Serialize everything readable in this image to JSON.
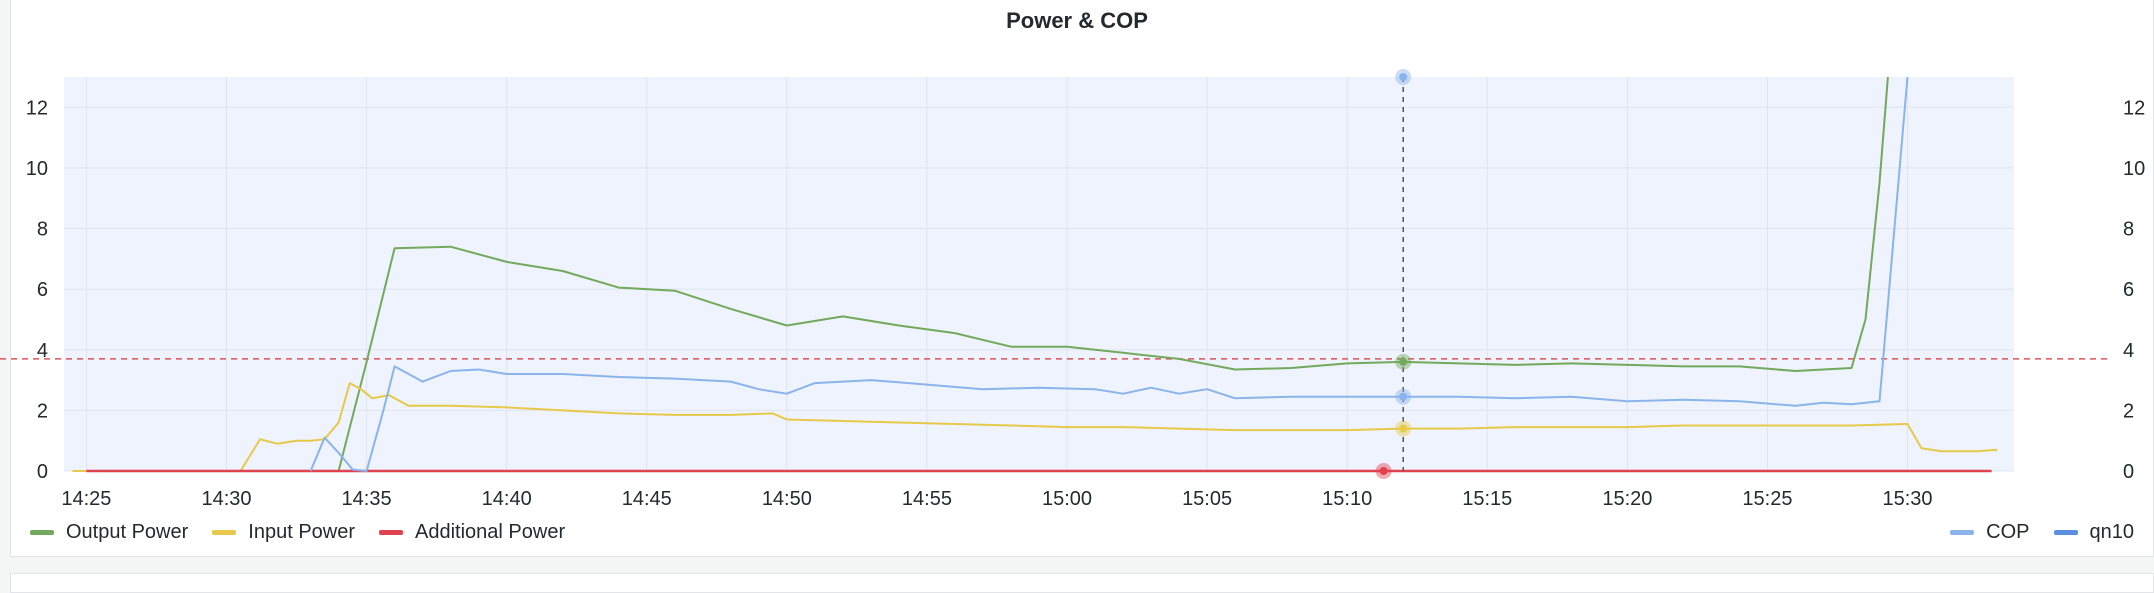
{
  "panel": {
    "title": "Power & COP"
  },
  "colors": {
    "output_power": "#73a95c",
    "input_power": "#e6c94a",
    "additional_power": "#e0434f",
    "cop": "#8ab4ea",
    "qn10": "#5b8fe0",
    "plot_bg": "#eef3fd",
    "threshold": "#d9545b",
    "grid": "#dfe4ee"
  },
  "legend": {
    "left": [
      {
        "name": "Output Power",
        "color": "#73a95c"
      },
      {
        "name": "Input Power",
        "color": "#e6c94a"
      },
      {
        "name": "Additional Power",
        "color": "#e0434f"
      }
    ],
    "right": [
      {
        "name": "COP",
        "color": "#8ab4ea"
      },
      {
        "name": "qn10",
        "color": "#5b8fe0"
      }
    ]
  },
  "chart_data": {
    "type": "line",
    "title": "Power & COP",
    "x_ticks": [
      "14:25",
      "14:30",
      "14:35",
      "14:40",
      "14:45",
      "14:50",
      "14:55",
      "15:00",
      "15:05",
      "15:10",
      "15:15",
      "15:20",
      "15:25",
      "15:30"
    ],
    "y_left": {
      "min": 0,
      "max": 13,
      "ticks": [
        0,
        2,
        4,
        6,
        8,
        10,
        12
      ]
    },
    "y_right": {
      "min": 0,
      "max": 13,
      "ticks": [
        0,
        2,
        4,
        6,
        8,
        10,
        12
      ]
    },
    "threshold": 3.7,
    "cursor_time": "15:12",
    "grid": true,
    "legend_placement": "bottom",
    "series": [
      {
        "name": "Output Power",
        "color": "#73a95c",
        "axis": "left",
        "points": [
          [
            "14:34",
            0
          ],
          [
            "14:35",
            3.6
          ],
          [
            "14:36",
            7.35
          ],
          [
            "14:38",
            7.4
          ],
          [
            "14:40",
            6.9
          ],
          [
            "14:42",
            6.6
          ],
          [
            "14:44",
            6.05
          ],
          [
            "14:46",
            5.95
          ],
          [
            "14:48",
            5.35
          ],
          [
            "14:50",
            4.8
          ],
          [
            "14:52",
            5.1
          ],
          [
            "14:54",
            4.8
          ],
          [
            "14:56",
            4.55
          ],
          [
            "14:58",
            4.1
          ],
          [
            "15:00",
            4.1
          ],
          [
            "15:02",
            3.9
          ],
          [
            "15:04",
            3.7
          ],
          [
            "15:06",
            3.35
          ],
          [
            "15:08",
            3.4
          ],
          [
            "15:10",
            3.55
          ],
          [
            "15:12",
            3.6
          ],
          [
            "15:14",
            3.55
          ],
          [
            "15:16",
            3.5
          ],
          [
            "15:18",
            3.55
          ],
          [
            "15:20",
            3.5
          ],
          [
            "15:22",
            3.45
          ],
          [
            "15:24",
            3.45
          ],
          [
            "15:26",
            3.3
          ],
          [
            "15:28",
            3.4
          ],
          [
            "15:28.5",
            5.0
          ],
          [
            "15:29",
            9.5
          ],
          [
            "15:29.3",
            13
          ]
        ]
      },
      {
        "name": "Input Power",
        "color": "#e6c94a",
        "axis": "left",
        "points": [
          [
            "14:24.5",
            0
          ],
          [
            "14:25",
            0
          ],
          [
            "14:30.5",
            0
          ],
          [
            "14:31.2",
            1.05
          ],
          [
            "14:31.8",
            0.9
          ],
          [
            "14:32.5",
            1.0
          ],
          [
            "14:33",
            1.0
          ],
          [
            "14:33.5",
            1.05
          ],
          [
            "14:34",
            1.6
          ],
          [
            "14:34.4",
            2.9
          ],
          [
            "14:34.8",
            2.7
          ],
          [
            "14:35.2",
            2.4
          ],
          [
            "14:35.8",
            2.5
          ],
          [
            "14:36.5",
            2.15
          ],
          [
            "14:38",
            2.15
          ],
          [
            "14:40",
            2.1
          ],
          [
            "14:42",
            2.0
          ],
          [
            "14:44",
            1.9
          ],
          [
            "14:46",
            1.85
          ],
          [
            "14:48",
            1.85
          ],
          [
            "14:49.5",
            1.9
          ],
          [
            "14:50",
            1.7
          ],
          [
            "14:52",
            1.65
          ],
          [
            "14:54",
            1.6
          ],
          [
            "14:56",
            1.55
          ],
          [
            "14:58",
            1.5
          ],
          [
            "15:00",
            1.45
          ],
          [
            "15:02",
            1.45
          ],
          [
            "15:04",
            1.4
          ],
          [
            "15:06",
            1.35
          ],
          [
            "15:08",
            1.35
          ],
          [
            "15:10",
            1.35
          ],
          [
            "15:12",
            1.4
          ],
          [
            "15:14",
            1.4
          ],
          [
            "15:16",
            1.45
          ],
          [
            "15:18",
            1.45
          ],
          [
            "15:20",
            1.45
          ],
          [
            "15:22",
            1.5
          ],
          [
            "15:24",
            1.5
          ],
          [
            "15:26",
            1.5
          ],
          [
            "15:28",
            1.5
          ],
          [
            "15:30",
            1.55
          ],
          [
            "15:30.5",
            0.75
          ],
          [
            "15:31.2",
            0.65
          ],
          [
            "15:32.5",
            0.65
          ],
          [
            "15:33.2",
            0.7
          ]
        ]
      },
      {
        "name": "Additional Power",
        "color": "#e0434f",
        "axis": "left",
        "points": [
          [
            "14:25",
            0
          ],
          [
            "15:33",
            0
          ]
        ]
      },
      {
        "name": "COP",
        "color": "#8ab4ea",
        "axis": "right",
        "points": [
          [
            "14:33",
            0
          ],
          [
            "14:33.5",
            1.1
          ],
          [
            "14:34",
            0.6
          ],
          [
            "14:34.5",
            0.05
          ],
          [
            "14:35",
            0
          ],
          [
            "14:35.6",
            2.0
          ],
          [
            "14:36",
            3.45
          ],
          [
            "14:37",
            2.95
          ],
          [
            "14:38",
            3.3
          ],
          [
            "14:39",
            3.35
          ],
          [
            "14:40",
            3.2
          ],
          [
            "14:42",
            3.2
          ],
          [
            "14:44",
            3.1
          ],
          [
            "14:46",
            3.05
          ],
          [
            "14:48",
            2.95
          ],
          [
            "14:49",
            2.7
          ],
          [
            "14:50",
            2.55
          ],
          [
            "14:51",
            2.9
          ],
          [
            "14:53",
            3.0
          ],
          [
            "14:55",
            2.85
          ],
          [
            "14:57",
            2.7
          ],
          [
            "14:59",
            2.75
          ],
          [
            "15:01",
            2.7
          ],
          [
            "15:02",
            2.55
          ],
          [
            "15:03",
            2.75
          ],
          [
            "15:04",
            2.55
          ],
          [
            "15:05",
            2.7
          ],
          [
            "15:06",
            2.4
          ],
          [
            "15:08",
            2.45
          ],
          [
            "15:10",
            2.45
          ],
          [
            "15:12",
            2.45
          ],
          [
            "15:14",
            2.45
          ],
          [
            "15:16",
            2.4
          ],
          [
            "15:18",
            2.45
          ],
          [
            "15:20",
            2.3
          ],
          [
            "15:22",
            2.35
          ],
          [
            "15:24",
            2.3
          ],
          [
            "15:26",
            2.15
          ],
          [
            "15:27",
            2.25
          ],
          [
            "15:28",
            2.2
          ],
          [
            "15:29",
            2.3
          ],
          [
            "15:30",
            13
          ]
        ]
      }
    ],
    "cursor_values": {
      "COP": 13,
      "Output Power": 3.6,
      "COP point": 2.45,
      "Input Power": 1.4,
      "Additional Power": 0
    }
  }
}
